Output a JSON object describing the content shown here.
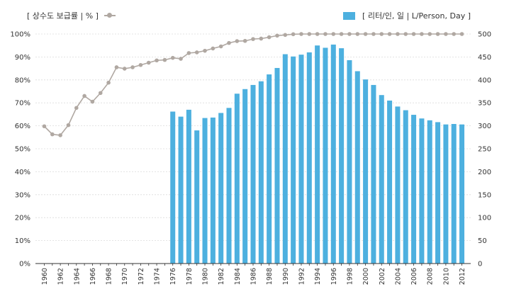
{
  "legend": {
    "line_label": "[ 상수도 보급률 | % ]",
    "bar_label": "[ 리터/인, 일 | L/Person, Day ]"
  },
  "colors": {
    "bar": "#4db0df",
    "line": "#b0a8a2",
    "axis": "#333333"
  },
  "chart_data": {
    "type": "bar+line",
    "x_labels": [
      "1960",
      "1962",
      "1964",
      "1966",
      "1968",
      "1970",
      "1972",
      "1974",
      "1976",
      "1978",
      "1980",
      "1982",
      "1984",
      "1986",
      "1988",
      "1990",
      "1992",
      "1994",
      "1996",
      "1998",
      "2000",
      "2002",
      "2004",
      "2006",
      "2008",
      "2010",
      "2012"
    ],
    "left_axis": {
      "unit": "%",
      "ylim": [
        0,
        100
      ],
      "ticks": [
        0,
        10,
        20,
        30,
        40,
        50,
        60,
        70,
        80,
        90,
        100
      ]
    },
    "right_axis": {
      "ylim": [
        0,
        500
      ],
      "ticks": [
        0,
        50,
        100,
        150,
        200,
        250,
        300,
        350,
        400,
        450,
        500
      ]
    },
    "supply_rate": {
      "name": "상수도 보급률",
      "axis": "left",
      "x": [
        1960,
        1961,
        1962,
        1963,
        1964,
        1965,
        1966,
        1967,
        1968,
        1969,
        1970,
        1971,
        1972,
        1973,
        1974,
        1975,
        1976,
        1977,
        1978,
        1979,
        1980,
        1981,
        1982,
        1983,
        1984,
        1985,
        1986,
        1987,
        1988,
        1989,
        1990,
        1991,
        1992,
        1993,
        1994,
        1995,
        1996,
        1997,
        1998,
        1999,
        2000,
        2001,
        2002,
        2003,
        2004,
        2005,
        2006,
        2007,
        2008,
        2009,
        2010,
        2011,
        2012
      ],
      "y": [
        59.8,
        56.3,
        55.9,
        60.3,
        67.8,
        73.0,
        70.5,
        74.3,
        78.8,
        85.5,
        84.9,
        85.5,
        86.5,
        87.5,
        88.5,
        88.7,
        89.6,
        89.2,
        91.7,
        92.0,
        92.7,
        93.7,
        94.6,
        96.1,
        96.9,
        97.0,
        97.8,
        98.0,
        98.6,
        99.3,
        99.6,
        99.9,
        100,
        100,
        100,
        100,
        100,
        100,
        100,
        100,
        100,
        100,
        100,
        100,
        100,
        100,
        100,
        100,
        100,
        100,
        100,
        100,
        100
      ]
    },
    "water_supply": {
      "name": "리터/인, 일",
      "axis": "right",
      "x": [
        1976,
        1977,
        1978,
        1979,
        1980,
        1981,
        1982,
        1983,
        1984,
        1985,
        1986,
        1987,
        1988,
        1989,
        1990,
        1991,
        1992,
        1993,
        1994,
        1995,
        1996,
        1997,
        1998,
        1999,
        2000,
        2001,
        2002,
        2003,
        2004,
        2005,
        2006,
        2007,
        2008,
        2009,
        2010,
        2011,
        2012
      ],
      "y": [
        331,
        320,
        335,
        290,
        317,
        318,
        328,
        339,
        370,
        380,
        389,
        397,
        412,
        426,
        456,
        451,
        455,
        460,
        475,
        470,
        477,
        469,
        443,
        419,
        401,
        389,
        367,
        355,
        342,
        334,
        324,
        316,
        312,
        308,
        303,
        304,
        303
      ]
    }
  }
}
